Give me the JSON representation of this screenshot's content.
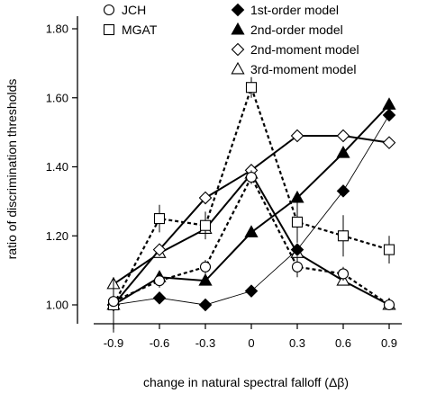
{
  "chart_data": {
    "type": "line",
    "x": [
      -0.9,
      -0.6,
      -0.3,
      0,
      0.3,
      0.6,
      0.9
    ],
    "xlim": [
      -0.9,
      0.9
    ],
    "ylim": [
      0.98,
      1.82
    ],
    "xticks": [
      "-0.9",
      "-0.6",
      "-0.3",
      "0",
      "0.3",
      "0.6",
      "0.9"
    ],
    "yticks": [
      "1.00",
      "1.20",
      "1.40",
      "1.60",
      "1.80"
    ],
    "xlabel": "change in natural spectral falloff (Δβ)",
    "ylabel": "ratio of discrimination thresholds",
    "grid": false,
    "series": [
      {
        "name": "JCH",
        "marker": "circle-open",
        "line": "dashed-thick",
        "values": [
          1.01,
          1.07,
          1.11,
          1.37,
          1.11,
          1.09,
          1.0
        ],
        "err": [
          0.015,
          0.02,
          0.02,
          0.02,
          0.03,
          0.02,
          0.01
        ]
      },
      {
        "name": "MGAT",
        "marker": "square-open",
        "line": "dashed-thick",
        "values": [
          1.0,
          1.25,
          1.23,
          1.63,
          1.24,
          1.2,
          1.16
        ],
        "err": [
          0.02,
          0.04,
          0.04,
          0.03,
          0.06,
          0.06,
          0.04
        ]
      },
      {
        "name": "1st-order model",
        "marker": "diamond-filled",
        "line": "thin",
        "values": [
          1.0,
          1.02,
          1.0,
          1.04,
          1.16,
          1.33,
          1.55
        ],
        "err": [
          0.08,
          0,
          0,
          0,
          0,
          0,
          0
        ]
      },
      {
        "name": "2nd-order model",
        "marker": "triangle-filled",
        "line": "thick",
        "values": [
          1.0,
          1.08,
          1.07,
          1.21,
          1.31,
          1.44,
          1.58
        ],
        "err": [
          0,
          0,
          0,
          0,
          0,
          0,
          0
        ]
      },
      {
        "name": "2nd-moment model",
        "marker": "diamond-open",
        "line": "thick",
        "values": [
          1.0,
          1.16,
          1.31,
          1.39,
          1.49,
          1.49,
          1.47
        ],
        "err": [
          0,
          0,
          0,
          0,
          0,
          0,
          0
        ]
      },
      {
        "name": "3rd-moment model",
        "marker": "triangle-open",
        "line": "thick",
        "values": [
          1.06,
          1.15,
          1.22,
          1.38,
          1.15,
          1.07,
          1.0
        ],
        "err": [
          0,
          0,
          0,
          0,
          0,
          0,
          0
        ]
      }
    ]
  }
}
